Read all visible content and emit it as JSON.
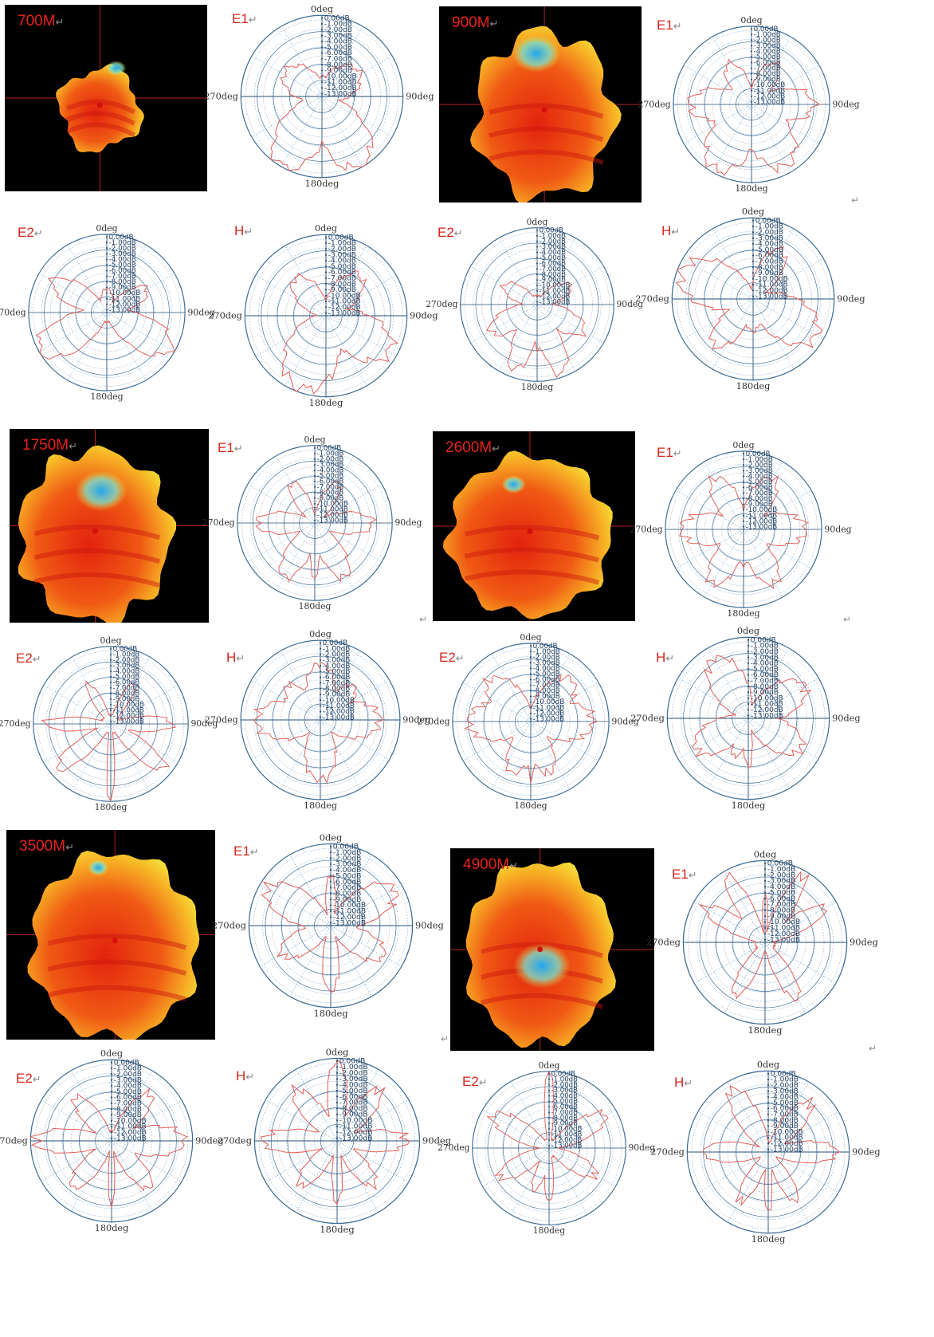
{
  "ret_symbol": "↵",
  "colors": {
    "label": "#d7261c",
    "curve": "#e2615a",
    "grid_ring": "#3f6e99",
    "grid_dash": "#5d93c7",
    "axis": "#2b4f75",
    "background_3d": "#000000"
  },
  "tick_labels": [
    "0.00dB",
    "-1.00dB",
    "-2.00dB",
    "-3.00dB",
    "-4.00dB",
    "-5.00dB",
    "-6.00dB",
    "-7.00dB",
    "-8.00dB",
    "-9.00dB",
    "-10.00dB",
    "-11.00dB",
    "-12.00dB",
    "-13.00dB"
  ],
  "direction_labels": {
    "top": "0deg",
    "right": "90deg",
    "bottom": "180deg",
    "left": "270deg"
  },
  "bands": [
    {
      "label": "700M",
      "icon": "3d-radiation-pattern-icon",
      "shape": 0
    },
    {
      "label": "900M",
      "icon": "3d-radiation-pattern-icon",
      "shape": 1
    },
    {
      "label": "1750M",
      "icon": "3d-radiation-pattern-icon",
      "shape": 2
    },
    {
      "label": "2600M",
      "icon": "3d-radiation-pattern-icon",
      "shape": 3
    },
    {
      "label": "3500M",
      "icon": "3d-radiation-pattern-icon",
      "shape": 4
    },
    {
      "label": "4900M",
      "icon": "3d-radiation-pattern-icon",
      "shape": 5
    }
  ],
  "chart_data": [
    {
      "type": "polar",
      "band": "700M",
      "plane": "E1",
      "rmax": 1,
      "lobes": [
        [
          1.0,
          150,
          28
        ],
        [
          1.0,
          210,
          28
        ],
        [
          0.55,
          55,
          35
        ],
        [
          0.55,
          305,
          35
        ],
        [
          0.25,
          0,
          30
        ]
      ]
    },
    {
      "type": "polar",
      "band": "700M",
      "plane": "E2",
      "rmax": 1,
      "lobes": [
        [
          1.0,
          240,
          22
        ],
        [
          0.95,
          120,
          22
        ],
        [
          0.8,
          300,
          18
        ],
        [
          0.6,
          60,
          18
        ],
        [
          0.3,
          0,
          25
        ]
      ]
    },
    {
      "type": "polar",
      "band": "700M",
      "plane": "H",
      "rmax": 1,
      "lobes": [
        [
          0.95,
          200,
          35
        ],
        [
          0.9,
          120,
          30
        ],
        [
          0.65,
          40,
          25
        ],
        [
          0.6,
          320,
          25
        ]
      ]
    },
    {
      "type": "polar",
      "band": "900M",
      "plane": "E1",
      "rmax": 1,
      "lobes": [
        [
          0.9,
          150,
          30
        ],
        [
          0.95,
          210,
          30
        ],
        [
          0.8,
          90,
          25
        ],
        [
          0.8,
          270,
          25
        ],
        [
          0.6,
          30,
          20
        ],
        [
          0.6,
          330,
          20
        ]
      ]
    },
    {
      "type": "polar",
      "band": "900M",
      "plane": "E2",
      "rmax": 1,
      "lobes": [
        [
          0.9,
          200,
          15
        ],
        [
          0.95,
          160,
          15
        ],
        [
          0.7,
          240,
          20
        ],
        [
          0.7,
          120,
          20
        ],
        [
          0.5,
          60,
          20
        ],
        [
          0.5,
          300,
          20
        ],
        [
          0.6,
          180,
          6
        ]
      ]
    },
    {
      "type": "polar",
      "band": "900M",
      "plane": "H",
      "rmax": 1,
      "lobes": [
        [
          0.95,
          290,
          30
        ],
        [
          0.9,
          120,
          30
        ],
        [
          0.75,
          220,
          20
        ],
        [
          0.7,
          30,
          20
        ],
        [
          0.4,
          180,
          20
        ]
      ]
    },
    {
      "type": "polar",
      "band": "1750M",
      "plane": "E1",
      "rmax": 1,
      "lobes": [
        [
          0.75,
          90,
          18
        ],
        [
          0.75,
          270,
          18
        ],
        [
          0.8,
          150,
          18
        ],
        [
          0.8,
          210,
          18
        ],
        [
          0.6,
          30,
          15
        ],
        [
          0.6,
          330,
          15
        ],
        [
          0.7,
          180,
          8
        ]
      ]
    },
    {
      "type": "polar",
      "band": "1750M",
      "plane": "E2",
      "rmax": 1,
      "lobes": [
        [
          0.9,
          230,
          12
        ],
        [
          0.9,
          130,
          12
        ],
        [
          0.85,
          270,
          10
        ],
        [
          0.8,
          90,
          12
        ],
        [
          1.0,
          180,
          5
        ],
        [
          0.6,
          30,
          10
        ],
        [
          0.6,
          330,
          10
        ]
      ]
    },
    {
      "type": "polar",
      "band": "1750M",
      "plane": "H",
      "rmax": 1,
      "lobes": [
        [
          0.8,
          270,
          30
        ],
        [
          0.75,
          90,
          30
        ],
        [
          0.7,
          0,
          25
        ],
        [
          0.75,
          180,
          25
        ],
        [
          0.6,
          45,
          20
        ],
        [
          0.6,
          315,
          20
        ]
      ]
    },
    {
      "type": "polar",
      "band": "2600M",
      "plane": "E1",
      "rmax": 1,
      "lobes": [
        [
          0.8,
          90,
          25
        ],
        [
          0.8,
          270,
          25
        ],
        [
          0.75,
          30,
          20
        ],
        [
          0.75,
          330,
          20
        ],
        [
          0.8,
          150,
          20
        ],
        [
          0.8,
          210,
          20
        ],
        [
          0.5,
          180,
          6
        ]
      ]
    },
    {
      "type": "polar",
      "band": "2600M",
      "plane": "E2",
      "rmax": 1,
      "lobes": [
        [
          0.8,
          270,
          30
        ],
        [
          0.8,
          90,
          30
        ],
        [
          0.75,
          45,
          25
        ],
        [
          0.75,
          315,
          25
        ],
        [
          0.7,
          200,
          20
        ],
        [
          0.7,
          160,
          20
        ],
        [
          0.8,
          180,
          4
        ]
      ]
    },
    {
      "type": "polar",
      "band": "2600M",
      "plane": "H",
      "rmax": 1,
      "lobes": [
        [
          0.85,
          330,
          25
        ],
        [
          0.8,
          60,
          25
        ],
        [
          0.75,
          120,
          25
        ],
        [
          0.75,
          240,
          25
        ],
        [
          0.6,
          180,
          8
        ],
        [
          0.5,
          200,
          15
        ]
      ]
    },
    {
      "type": "polar",
      "band": "3500M",
      "plane": "E1",
      "rmax": 1,
      "lobes": [
        [
          0.9,
          60,
          22
        ],
        [
          0.9,
          300,
          22
        ],
        [
          0.75,
          120,
          20
        ],
        [
          0.7,
          240,
          20
        ],
        [
          0.8,
          180,
          12
        ],
        [
          0.6,
          0,
          10
        ]
      ]
    },
    {
      "type": "polar",
      "band": "3500M",
      "plane": "E2",
      "rmax": 1,
      "lobes": [
        [
          0.95,
          270,
          15
        ],
        [
          0.9,
          90,
          20
        ],
        [
          0.75,
          220,
          15
        ],
        [
          0.75,
          140,
          15
        ],
        [
          0.7,
          320,
          15
        ],
        [
          0.75,
          40,
          15
        ],
        [
          0.8,
          180,
          5
        ]
      ]
    },
    {
      "type": "polar",
      "band": "3500M",
      "plane": "H",
      "rmax": 1,
      "lobes": [
        [
          0.95,
          0,
          12
        ],
        [
          0.9,
          270,
          15
        ],
        [
          0.85,
          90,
          15
        ],
        [
          0.8,
          320,
          15
        ],
        [
          0.8,
          40,
          15
        ],
        [
          0.75,
          180,
          8
        ],
        [
          0.7,
          220,
          15
        ],
        [
          0.7,
          140,
          15
        ]
      ]
    },
    {
      "type": "polar",
      "band": "4900M",
      "plane": "E1",
      "rmax": 1,
      "lobes": [
        [
          0.95,
          330,
          10
        ],
        [
          0.95,
          30,
          10
        ],
        [
          0.85,
          60,
          12
        ],
        [
          0.85,
          300,
          12
        ],
        [
          0.8,
          150,
          12
        ],
        [
          0.75,
          210,
          12
        ],
        [
          0.6,
          0,
          5
        ]
      ]
    },
    {
      "type": "polar",
      "band": "4900M",
      "plane": "E2",
      "rmax": 1,
      "lobes": [
        [
          1.0,
          0,
          6
        ],
        [
          0.85,
          300,
          15
        ],
        [
          0.85,
          60,
          15
        ],
        [
          0.75,
          240,
          15
        ],
        [
          0.7,
          120,
          15
        ],
        [
          0.7,
          180,
          8
        ],
        [
          0.6,
          200,
          10
        ]
      ]
    },
    {
      "type": "polar",
      "band": "4900M",
      "plane": "H",
      "rmax": 1,
      "lobes": [
        [
          0.9,
          330,
          15
        ],
        [
          0.85,
          90,
          15
        ],
        [
          0.8,
          40,
          15
        ],
        [
          0.8,
          270,
          15
        ],
        [
          0.75,
          180,
          6
        ],
        [
          0.7,
          150,
          12
        ],
        [
          0.7,
          210,
          12
        ]
      ]
    }
  ]
}
